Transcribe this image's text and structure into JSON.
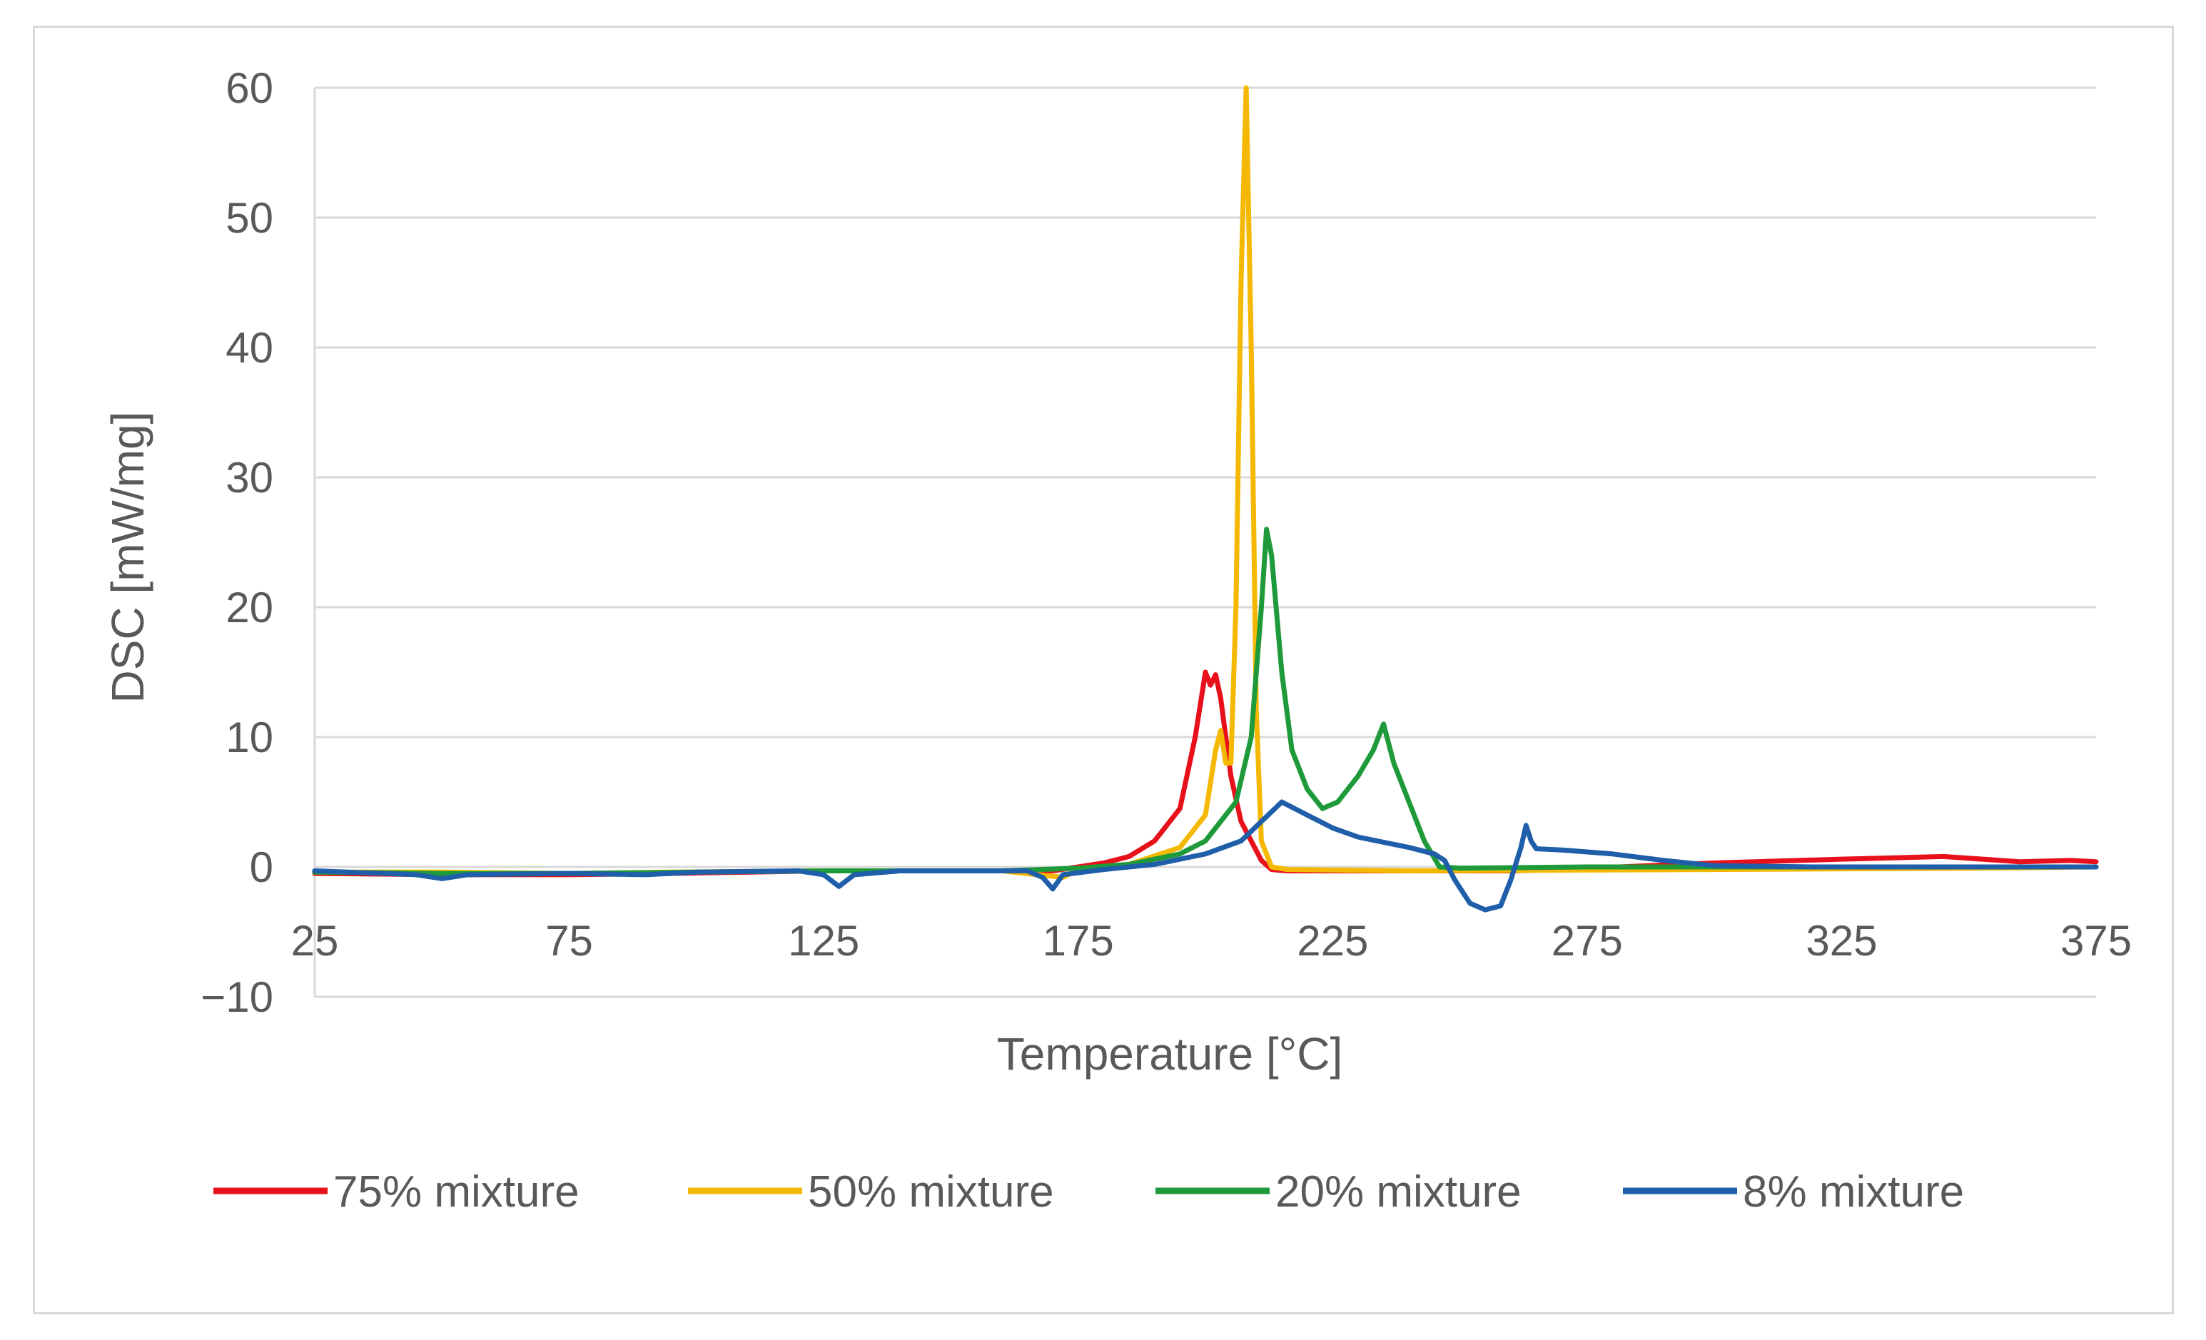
{
  "chart_data": {
    "type": "line",
    "xlabel": "Temperature  [°C]",
    "ylabel": "DSC [mW/mg]",
    "xlim": [
      25,
      375
    ],
    "ylim": [
      -10,
      60
    ],
    "xticks": [
      25,
      75,
      125,
      175,
      225,
      275,
      325,
      375
    ],
    "yticks": [
      -10,
      0,
      10,
      20,
      30,
      40,
      50,
      60
    ],
    "xtick_labels": [
      "25",
      "75",
      "125",
      "175",
      "225",
      "275",
      "325",
      "375"
    ],
    "ytick_labels": [
      "−10",
      "0",
      "10",
      "20",
      "30",
      "40",
      "50",
      "60"
    ],
    "grid": true,
    "legend_position": "bottom",
    "series": [
      {
        "name": "75% mixture",
        "color": "#e8111b",
        "points": [
          [
            25,
            -0.5
          ],
          [
            50,
            -0.6
          ],
          [
            75,
            -0.6
          ],
          [
            95,
            -0.5
          ],
          [
            125,
            -0.3
          ],
          [
            150,
            -0.3
          ],
          [
            170,
            -0.3
          ],
          [
            175,
            0
          ],
          [
            180,
            0.3
          ],
          [
            185,
            0.8
          ],
          [
            190,
            2
          ],
          [
            195,
            4.5
          ],
          [
            198,
            10
          ],
          [
            200,
            15
          ],
          [
            201,
            14
          ],
          [
            202,
            14.8
          ],
          [
            203,
            13
          ],
          [
            205,
            7
          ],
          [
            207,
            3.5
          ],
          [
            209,
            2
          ],
          [
            211,
            0.5
          ],
          [
            213,
            -0.2
          ],
          [
            216,
            -0.3
          ],
          [
            240,
            -0.3
          ],
          [
            260,
            -0.3
          ],
          [
            275,
            -0.1
          ],
          [
            300,
            0.3
          ],
          [
            325,
            0.6
          ],
          [
            345,
            0.8
          ],
          [
            360,
            0.4
          ],
          [
            370,
            0.5
          ],
          [
            375,
            0.4
          ]
        ]
      },
      {
        "name": "50% mixture",
        "color": "#f5b800",
        "points": [
          [
            25,
            -0.4
          ],
          [
            50,
            -0.4
          ],
          [
            75,
            -0.5
          ],
          [
            95,
            -0.4
          ],
          [
            125,
            -0.3
          ],
          [
            160,
            -0.3
          ],
          [
            172,
            -0.8
          ],
          [
            175,
            -0.2
          ],
          [
            185,
            0.2
          ],
          [
            195,
            1.5
          ],
          [
            200,
            4
          ],
          [
            202,
            9
          ],
          [
            203,
            10.5
          ],
          [
            204,
            8
          ],
          [
            205,
            8
          ],
          [
            206,
            20
          ],
          [
            207,
            45
          ],
          [
            208,
            60
          ],
          [
            209,
            40
          ],
          [
            210,
            12
          ],
          [
            211,
            2
          ],
          [
            213,
            0
          ],
          [
            216,
            -0.2
          ],
          [
            240,
            -0.3
          ],
          [
            300,
            -0.2
          ],
          [
            350,
            -0.1
          ],
          [
            375,
            0
          ]
        ]
      },
      {
        "name": "20% mixture",
        "color": "#1e9a3a",
        "points": [
          [
            25,
            -0.4
          ],
          [
            50,
            -0.5
          ],
          [
            75,
            -0.5
          ],
          [
            100,
            -0.4
          ],
          [
            125,
            -0.3
          ],
          [
            160,
            -0.3
          ],
          [
            175,
            -0.1
          ],
          [
            185,
            0.2
          ],
          [
            195,
            1
          ],
          [
            200,
            2
          ],
          [
            203,
            3.5
          ],
          [
            206,
            5
          ],
          [
            209,
            10
          ],
          [
            211,
            20
          ],
          [
            212,
            26
          ],
          [
            213,
            24
          ],
          [
            215,
            15
          ],
          [
            217,
            9
          ],
          [
            220,
            6
          ],
          [
            223,
            4.5
          ],
          [
            226,
            5
          ],
          [
            230,
            7
          ],
          [
            233,
            9
          ],
          [
            235,
            11
          ],
          [
            237,
            8
          ],
          [
            240,
            5
          ],
          [
            243,
            2
          ],
          [
            246,
            0
          ],
          [
            250,
            -0.1
          ],
          [
            275,
            0
          ],
          [
            300,
            0
          ],
          [
            350,
            0
          ],
          [
            375,
            0
          ]
        ]
      },
      {
        "name": "8% mixture",
        "color": "#1f5ea8",
        "points": [
          [
            25,
            -0.3
          ],
          [
            45,
            -0.6
          ],
          [
            50,
            -0.9
          ],
          [
            55,
            -0.6
          ],
          [
            75,
            -0.5
          ],
          [
            90,
            -0.6
          ],
          [
            100,
            -0.4
          ],
          [
            120,
            -0.3
          ],
          [
            125,
            -0.6
          ],
          [
            128,
            -1.5
          ],
          [
            131,
            -0.6
          ],
          [
            140,
            -0.3
          ],
          [
            165,
            -0.3
          ],
          [
            168,
            -0.8
          ],
          [
            170,
            -1.7
          ],
          [
            172,
            -0.6
          ],
          [
            180,
            -0.2
          ],
          [
            190,
            0.2
          ],
          [
            200,
            1
          ],
          [
            207,
            2
          ],
          [
            211,
            3.5
          ],
          [
            215,
            5
          ],
          [
            220,
            4
          ],
          [
            225,
            3
          ],
          [
            230,
            2.3
          ],
          [
            240,
            1.5
          ],
          [
            245,
            1
          ],
          [
            247,
            0.5
          ],
          [
            249,
            -1
          ],
          [
            252,
            -2.8
          ],
          [
            255,
            -3.3
          ],
          [
            258,
            -3
          ],
          [
            260,
            -1
          ],
          [
            262,
            1.5
          ],
          [
            263,
            3.2
          ],
          [
            264,
            2
          ],
          [
            265,
            1.4
          ],
          [
            270,
            1.3
          ],
          [
            280,
            1
          ],
          [
            290,
            0.5
          ],
          [
            300,
            0.1
          ],
          [
            320,
            0
          ],
          [
            350,
            0
          ],
          [
            375,
            0
          ]
        ]
      }
    ]
  }
}
